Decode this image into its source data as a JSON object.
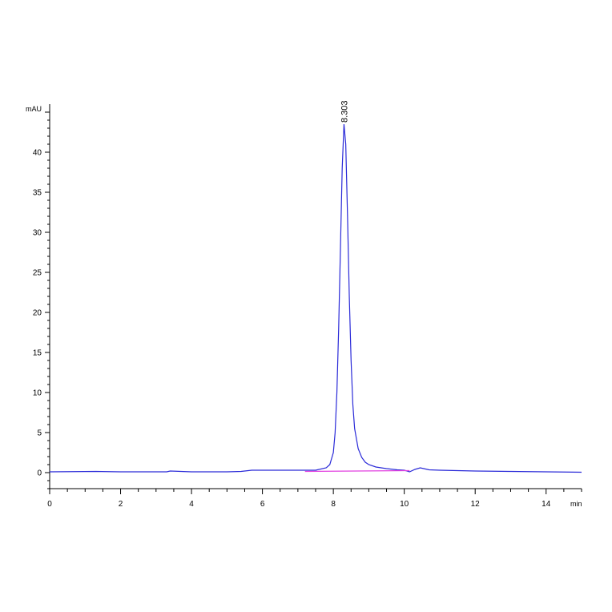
{
  "chart_data": {
    "type": "line",
    "title": "",
    "xlabel": "",
    "ylabel": "",
    "y_unit": "mAU",
    "x_unit": "min",
    "xlim": [
      0,
      15
    ],
    "ylim": [
      -2,
      46
    ],
    "x_ticks": [
      0,
      2,
      4,
      6,
      8,
      10,
      12,
      14
    ],
    "y_ticks": [
      0,
      5,
      10,
      15,
      20,
      25,
      30,
      35,
      40
    ],
    "grid": false,
    "legend": "none",
    "colors": {
      "signal": "#2a2ad8",
      "baseline": "#e23fe0",
      "axis": "#000000"
    },
    "series": [
      {
        "x": [
          0,
          1.3,
          2,
          3.3,
          3.4,
          4,
          5,
          5.4,
          5.7,
          6,
          6.5,
          7,
          7.2,
          7.5,
          7.8,
          7.9,
          8.0,
          8.05,
          8.1,
          8.15,
          8.2,
          8.25,
          8.3,
          8.35,
          8.4,
          8.45,
          8.5,
          8.55,
          8.6,
          8.7,
          8.8,
          8.9,
          9.0,
          9.2,
          9.5,
          9.8,
          10.0,
          10.15,
          10.3,
          10.45,
          10.55,
          10.7,
          11,
          11.5,
          12,
          13,
          14,
          15
        ],
        "y": [
          0.1,
          0.15,
          0.1,
          0.1,
          0.2,
          0.1,
          0.1,
          0.15,
          0.3,
          0.3,
          0.3,
          0.3,
          0.3,
          0.3,
          0.6,
          1.0,
          2.5,
          5,
          10,
          18,
          28,
          38,
          43.5,
          41,
          32,
          22,
          14,
          8.5,
          5.5,
          3.0,
          1.9,
          1.3,
          1.0,
          0.7,
          0.5,
          0.35,
          0.3,
          0.1,
          0.4,
          0.6,
          0.5,
          0.35,
          0.3,
          0.25,
          0.2,
          0.15,
          0.1,
          0.05
        ]
      }
    ],
    "baseline_segment": {
      "x": [
        7.2,
        10.15
      ],
      "y": [
        0.15,
        0.25
      ]
    },
    "peak_label": {
      "text": "8.303",
      "x": 8.303,
      "y": 43.5
    }
  }
}
